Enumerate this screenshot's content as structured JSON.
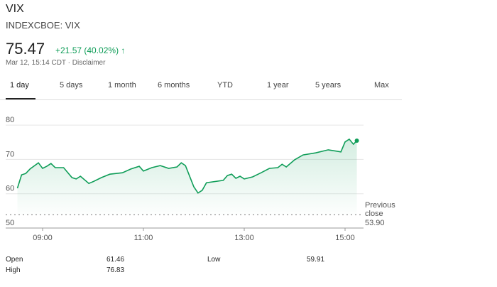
{
  "header": {
    "title": "VIX",
    "subtitle": "INDEXCBOE: VIX",
    "price": "75.47",
    "change": "+21.57 (40.02%)",
    "timestamp": "Mar 12, 15:14 CDT",
    "disclaimer": "Disclaimer"
  },
  "tabs": [
    "1 day",
    "5 days",
    "1 month",
    "6 months",
    "YTD",
    "1 year",
    "5 years",
    "Max"
  ],
  "chart_data": {
    "type": "line",
    "x": [
      "08:30",
      "08:35",
      "08:40",
      "08:45",
      "08:55",
      "09:00",
      "09:05",
      "09:10",
      "09:15",
      "09:25",
      "09:35",
      "09:40",
      "09:45",
      "09:55",
      "10:00",
      "10:10",
      "10:20",
      "10:35",
      "10:45",
      "10:55",
      "11:00",
      "11:10",
      "11:20",
      "11:30",
      "11:40",
      "11:45",
      "11:50",
      "11:55",
      "12:00",
      "12:05",
      "12:10",
      "12:15",
      "12:35",
      "12:40",
      "12:45",
      "12:50",
      "12:55",
      "13:00",
      "13:10",
      "13:20",
      "13:30",
      "13:40",
      "13:45",
      "13:50",
      "14:00",
      "14:10",
      "14:25",
      "14:40",
      "14:50",
      "14:55",
      "15:00",
      "15:05",
      "15:10",
      "15:14"
    ],
    "series": [
      {
        "color": "#0f9d58",
        "values": [
          61.6,
          65.5,
          65.9,
          67.2,
          69.0,
          67.4,
          68.0,
          68.8,
          67.6,
          67.6,
          64.7,
          64.3,
          65.1,
          63.0,
          63.5,
          64.7,
          65.7,
          66.1,
          67.2,
          68.0,
          66.6,
          67.6,
          68.2,
          67.4,
          67.8,
          69.0,
          68.2,
          65.1,
          62.0,
          60.2,
          61.0,
          63.2,
          63.9,
          65.3,
          65.7,
          64.5,
          65.1,
          64.3,
          64.9,
          66.1,
          67.4,
          67.6,
          68.6,
          67.8,
          69.9,
          71.3,
          71.9,
          72.8,
          72.4,
          72.2,
          75.1,
          75.9,
          74.4,
          75.47
        ]
      }
    ],
    "xlim": [
      "08:15",
      "15:30"
    ],
    "xticks": [
      "09:00",
      "11:00",
      "13:00",
      "15:00"
    ],
    "ylim": [
      47,
      83
    ],
    "yticks": [
      50,
      60,
      70,
      80
    ],
    "grid": true,
    "previous_close": {
      "label": "Previous close",
      "value": 53.9,
      "value_label": "53.90"
    }
  },
  "stats": [
    {
      "label": "Open",
      "value": "61.46"
    },
    {
      "label": "High",
      "value": "76.83"
    },
    {
      "label": "Low",
      "value": "59.91"
    }
  ]
}
